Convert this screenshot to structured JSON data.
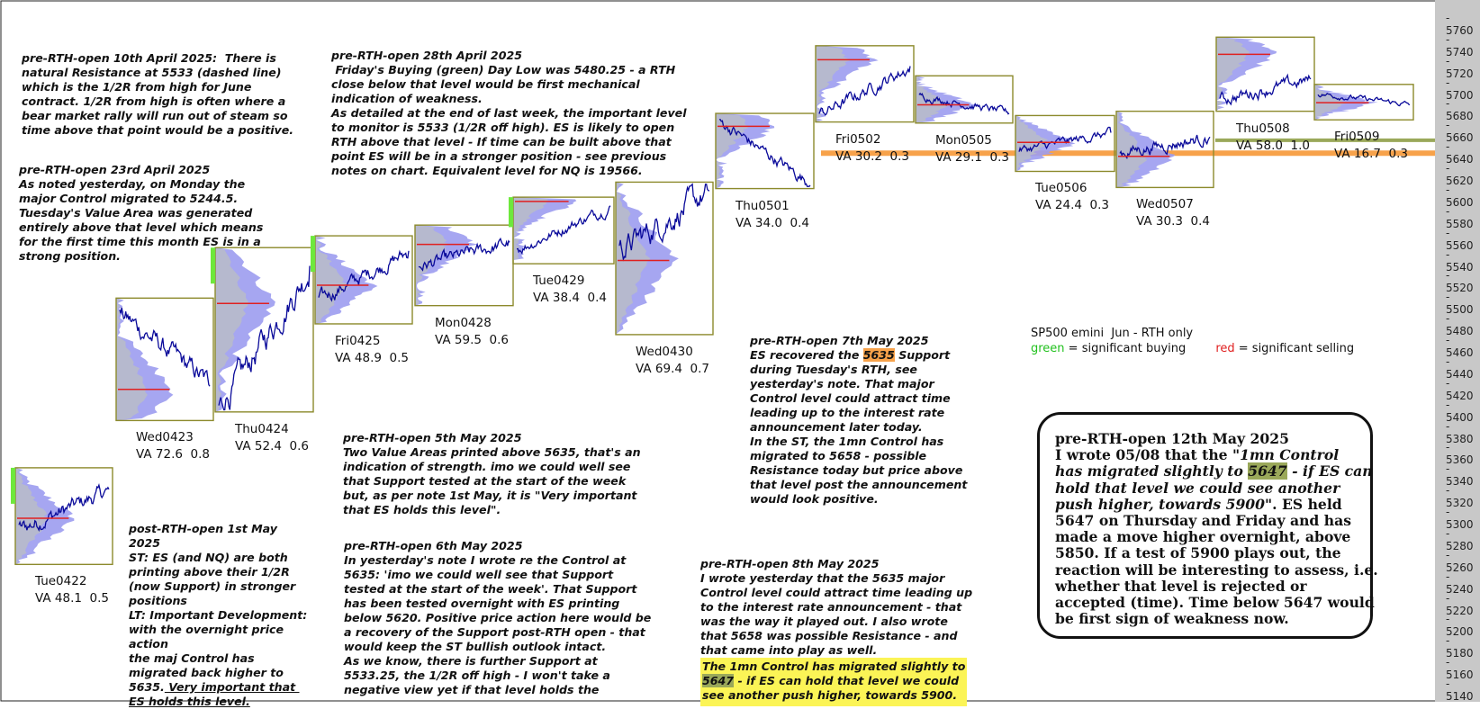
{
  "chart_data": {
    "type": "line",
    "title": "",
    "instrument_label": "SP500 emini  Jun - RTH only",
    "legend": {
      "green": "green",
      "green_text": " = significant buying",
      "red": "red",
      "red_text": " = significant selling",
      "green_color": "#22c11e",
      "red_color": "#e02020"
    },
    "ylim": [
      5130,
      5770
    ],
    "y_ticks": [
      5140,
      5160,
      5180,
      5200,
      5220,
      5240,
      5260,
      5280,
      5300,
      5320,
      5340,
      5360,
      5380,
      5400,
      5420,
      5440,
      5460,
      5480,
      5500,
      5520,
      5540,
      5560,
      5580,
      5600,
      5620,
      5640,
      5660,
      5680,
      5700,
      5720,
      5740,
      5760
    ],
    "levels": [
      {
        "name": "5635 major Control",
        "value": 5635,
        "color": "#f7a24a"
      },
      {
        "name": "5647 1mn Control",
        "value": 5647,
        "color": "#9aa85a"
      }
    ],
    "sessions": [
      {
        "label": "Tue0422",
        "va": "VA 48.1  0.5",
        "low": 5254,
        "high": 5340,
        "open": 5285,
        "close": 5322,
        "poc": 5295,
        "green_bar": true
      },
      {
        "label": "Wed0423",
        "va": "VA 72.6  0.8",
        "low": 5388,
        "high": 5498,
        "open": 5484,
        "close": 5418,
        "poc": 5415,
        "green_bar": false
      },
      {
        "label": "Thu0424",
        "va": "VA 52.4  0.6",
        "low": 5396,
        "high": 5545,
        "open": 5400,
        "close": 5530,
        "poc": 5495,
        "green_bar": true
      },
      {
        "label": "Fri0425",
        "va": "VA 48.9  0.5",
        "low": 5478,
        "high": 5556,
        "open": 5500,
        "close": 5544,
        "poc": 5512,
        "green_bar": true
      },
      {
        "label": "Mon0428",
        "va": "VA 59.5  0.6",
        "low": 5495,
        "high": 5566,
        "open": 5530,
        "close": 5552,
        "poc": 5550,
        "green_bar": false
      },
      {
        "label": "Tue0429",
        "va": "VA 38.4  0.4",
        "low": 5534,
        "high": 5592,
        "open": 5546,
        "close": 5586,
        "poc": 5590,
        "green_bar": true
      },
      {
        "label": "Wed0430",
        "va": "VA 69.4  0.7",
        "low": 5468,
        "high": 5606,
        "open": 5546,
        "close": 5600,
        "poc": 5535,
        "green_bar": false
      },
      {
        "label": "Thu0501",
        "va": "VA 34.0  0.4",
        "low": 5604,
        "high": 5670,
        "open": 5663,
        "close": 5605,
        "poc": 5660,
        "green_bar": false
      },
      {
        "label": "Fri0502",
        "va": "VA 30.2  0.3",
        "low": 5666,
        "high": 5733,
        "open": 5672,
        "close": 5716,
        "poc": 5722,
        "green_bar": false
      },
      {
        "label": "Mon0505",
        "va": "VA 29.1  0.3",
        "low": 5665,
        "high": 5705,
        "open": 5688,
        "close": 5672,
        "poc": 5680,
        "green_bar": false
      },
      {
        "label": "Tue0506",
        "va": "VA 24.4  0.3",
        "low": 5620,
        "high": 5668,
        "open": 5638,
        "close": 5654,
        "poc": 5645,
        "green_bar": false
      },
      {
        "label": "Wed0507",
        "va": "VA 30.3  0.4",
        "low": 5605,
        "high": 5672,
        "open": 5636,
        "close": 5650,
        "poc": 5632,
        "green_bar": false
      },
      {
        "label": "Thu0508",
        "va": "VA 58.0  1.0",
        "low": 5676,
        "high": 5741,
        "open": 5685,
        "close": 5704,
        "poc": 5727,
        "green_bar": false
      },
      {
        "label": "Fri0509",
        "va": "VA 16.7  0.3",
        "low": 5668,
        "high": 5697,
        "open": 5690,
        "close": 5680,
        "poc": 5682,
        "green_bar": false
      }
    ]
  },
  "notes": {
    "n1": {
      "title": "pre-RTH-open 10th April 2025:  There is",
      "body": "natural Resistance at 5533 (dashed line)\nwhich is the 1/2R from high for June\ncontract. 1/2R from high is often where a\nbear market rally will run out of steam so\ntime above that point would be a positive."
    },
    "n2": {
      "title": "pre-RTH-open 23rd April 2025",
      "body": "As noted yesterday, on Monday the\nmajor Control migrated to 5244.5.\nTuesday's Value Area was generated\nentirely above that level which means\nfor the first time this month ES is in a\nstrong position."
    },
    "n3": {
      "title": "pre-RTH-open 28th April 2025",
      "body": " Friday's Buying (green) Day Low was 5480.25 - a RTH\nclose below that level would be first mechanical\nindication of weakness.\nAs detailed at the end of last week, the important level\nto monitor is 5533 (1/2R off high). ES is likely to open\nRTH above that level - If time can be built above that\npoint ES will be in a stronger position - see previous\nnotes on chart. Equivalent level for NQ is 19566."
    },
    "n4": {
      "title": "post-RTH-open 1st May",
      "body": "2025\nST: ES (and NQ) are both\nprinting above their 1/2R\n(now Support) in stronger\npositions\nLT: Important Development:\nwith the overnight price\naction\nthe maj Control has\nmigrated back higher to\n5635.",
      "underlined": " Very important that \nES holds this level."
    },
    "n5": {
      "title": "pre-RTH-open 5th May 2025",
      "body": "Two Value Areas printed above 5635, that's an\nindication of strength. imo we could well see\nthat Support tested at the start of the week\nbut, as per note 1st May, it is \"Very important\nthat ES holds this level\"."
    },
    "n6": {
      "title": "pre-RTH-open 6th May 2025",
      "body": "In yesterday's note I wrote re the Control at\n5635: 'imo we could well see that Support\ntested at the start of the week'. That Support\nhas been tested overnight with ES printing\nbelow 5620. Positive price action here would be\na recovery of the Support post-RTH open - that\nwould keep the ST bullish outlook intact.\nAs we know, there is further Support at\n5533.25, the 1/2R off high - I won't take a\nnegative view yet if that level holds the"
    },
    "n7": {
      "title": "pre-RTH-open 7th May 2025",
      "pre": "ES recovered the ",
      "hl": "5635",
      "post": " Support",
      "body": "during Tuesday's RTH, see\nyesterday's note. That major\nControl level could attract time\nleading up to the interest rate\nannouncement later today.\nIn the ST, the 1mn Control has\nmigrated to 5658 - possible\nResistance today but price above\nthat level post the announcement\nwould look positive."
    },
    "n8": {
      "title": "pre-RTH-open 8th May 2025",
      "body": "I wrote yesterday that the 5635 major\nControl level could attract time leading up\nto the interest rate announcement - that\nwas the way it played out. I also wrote\nthat 5658 was possible Resistance - and\nthat came into play as well.",
      "y1": "The 1mn Control has migrated slightly to",
      "y_hl": "5647",
      "y2": " - if ES can hold that level we could",
      "y3": "see another push higher, towards 5900."
    }
  },
  "callout": {
    "title": "pre-RTH-open 12th May 2025",
    "l1a": "I wrote 05/08 that the \"",
    "l1i": "1mn Control",
    "l2i": "has migrated slightly to ",
    "l2hl": "5647",
    "l2b": " - if ES can",
    "l3i": "hold that level we could see another",
    "l4i": "push higher, towards 5900",
    "l4b": "\". ES held",
    "rest": "5647 on Thursday and Friday and has\nmade a move higher overnight, above\n5850. If a test of 5900 plays out, the\nreaction will be interesting to assess, i.e.\nwhether that level is rejected or\naccepted (time). Time below 5647 would\nbe first sign of weakness now."
  }
}
